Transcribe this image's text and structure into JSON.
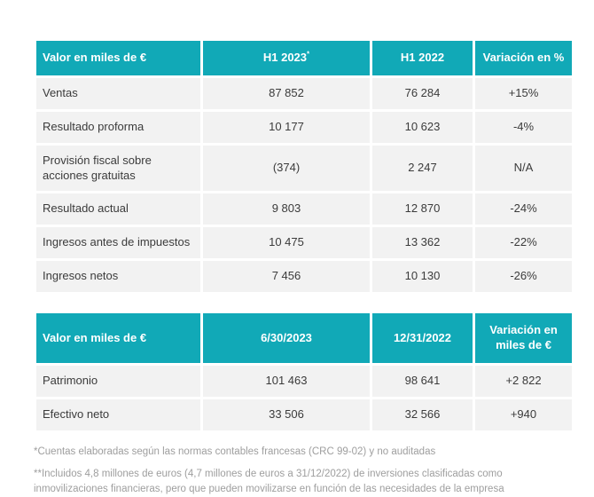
{
  "colors": {
    "header_bg": "#11a9b7",
    "row_bg": "#f2f2f2",
    "header_text": "#ffffff",
    "body_text": "#3b3b3b",
    "footnote_text": "#9e9e9e"
  },
  "table1": {
    "headers": [
      "Valor en miles de €",
      "H1 2023",
      "H1 2022",
      "Variación en %"
    ],
    "header_sup": "*",
    "rows": [
      [
        "Ventas",
        "87 852",
        "76 284",
        "+15%"
      ],
      [
        "Resultado proforma",
        "10 177",
        "10 623",
        "-4%"
      ],
      [
        "Provisión fiscal sobre acciones gratuitas",
        "(374)",
        "2 247",
        "N/A"
      ],
      [
        "Resultado actual",
        "9 803",
        "12 870",
        "-24%"
      ],
      [
        "Ingresos antes de impuestos",
        "10 475",
        "13 362",
        "-22%"
      ],
      [
        "Ingresos netos",
        "7 456",
        "10 130",
        "-26%"
      ]
    ]
  },
  "table2": {
    "headers": [
      "Valor en miles de €",
      "6/30/2023",
      "12/31/2022",
      "Variación en miles de €"
    ],
    "rows": [
      [
        "Patrimonio",
        "101 463",
        "98 641",
        "+2 822"
      ],
      [
        "Efectivo neto",
        "33 506",
        "32 566",
        "+940"
      ]
    ]
  },
  "footnotes": [
    "*Cuentas elaboradas según las normas contables francesas (CRC 99-02) y no auditadas",
    "**Incluidos 4,8 millones de euros (4,7 millones de euros a 31/12/2022) de inversiones clasificadas como inmovilizaciones financieras, pero que pueden movilizarse en función de las necesidades de la empresa"
  ]
}
